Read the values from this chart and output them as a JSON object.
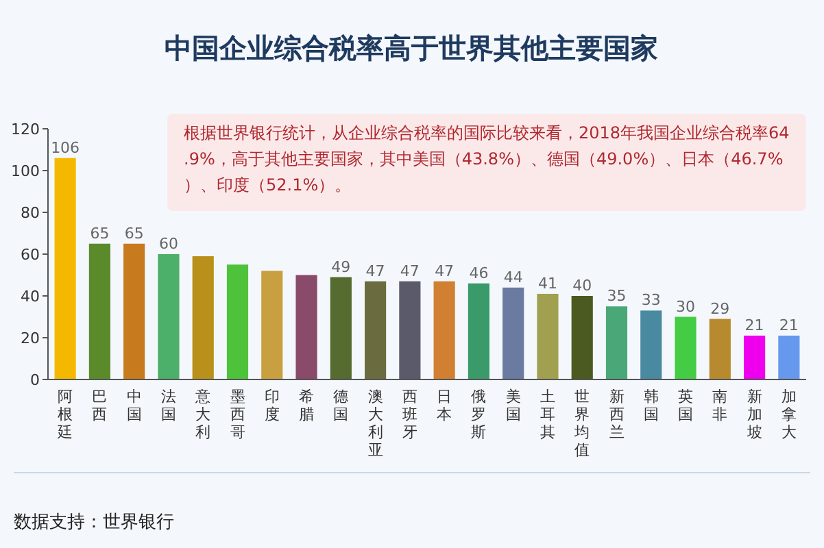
{
  "chart_data": {
    "type": "bar",
    "title": "中国企业综合税率高于世界其他主要国家",
    "categories": [
      "阿根廷",
      "巴西",
      "中国",
      "法国",
      "意大利",
      "墨西哥",
      "印度",
      "希腊",
      "德国",
      "澳大利亚",
      "西班牙",
      "日本",
      "俄罗斯",
      "美国",
      "土耳其",
      "世界均值",
      "新西兰",
      "韩国",
      "英国",
      "南非",
      "新加坡",
      "加拿大"
    ],
    "values": [
      106,
      65,
      65,
      60,
      59,
      55,
      52,
      50,
      49,
      47,
      47,
      47,
      46,
      44,
      41,
      40,
      35,
      33,
      30,
      29,
      21,
      21
    ],
    "value_labels": [
      "106",
      "65",
      "65",
      "60",
      null,
      null,
      null,
      null,
      "49",
      "47",
      "47",
      "47",
      "46",
      "44",
      "41",
      "40",
      "35",
      "33",
      "30",
      "29",
      "21",
      "21"
    ],
    "colors": [
      "#f5b800",
      "#5a8a2a",
      "#c87a1e",
      "#4caf6a",
      "#b8901a",
      "#4ec23a",
      "#c8a040",
      "#8a4a6a",
      "#556b2f",
      "#6b6b40",
      "#5a5a6a",
      "#d08030",
      "#3a9a6a",
      "#6a7aa0",
      "#a0a050",
      "#4a5a20",
      "#4aa878",
      "#4a8aa0",
      "#44cc44",
      "#b88a30",
      "#ee00ee",
      "#6699ee"
    ],
    "ylim": [
      0,
      120
    ],
    "yticks": [
      0,
      20,
      40,
      60,
      80,
      100,
      120
    ],
    "annotations": [
      "根据世界银行统计，从企业综合税率的国际比较来看，2018年我国企业综合税率64.9%，高于其他主要国家，其中美国（43.8%）、德国（49.0%）、日本（46.7%）、印度（52.1%）。",
      "数据支持：世界银行"
    ]
  }
}
